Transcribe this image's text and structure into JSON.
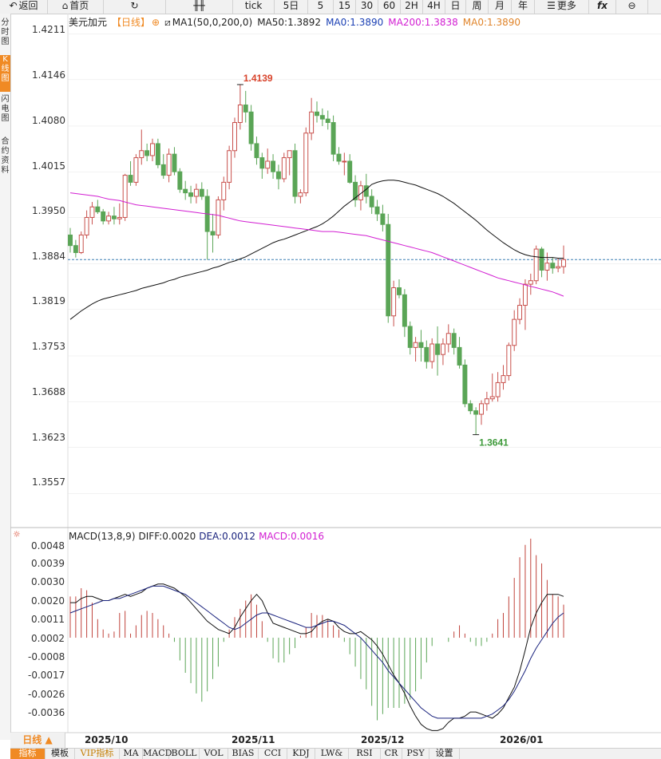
{
  "toolbar": {
    "back": "返回",
    "home": "首页",
    "refresh_icon": "refresh-icon",
    "tick": "tick",
    "periods": [
      "5日",
      "5",
      "15",
      "30",
      "60",
      "2H",
      "4H",
      "日",
      "周",
      "月",
      "年"
    ],
    "more": "更多",
    "fx": "fx"
  },
  "sidebar": {
    "items": [
      {
        "label": "分时图",
        "active": false
      },
      {
        "label": "K线图",
        "active": true
      },
      {
        "label": "闪电图",
        "active": false
      },
      {
        "label": "合约资料",
        "active": false
      }
    ]
  },
  "chart_info": {
    "symbol": "美元加元",
    "period": "【日线】",
    "ma_label": "MA1(50,0,200,0)",
    "ma50": "MA50:1.3892",
    "ma0": "MA0:1.3890",
    "ma200": "MA200:1.3838",
    "ma0b": "MA0:1.3890"
  },
  "macd_info": {
    "label": "MACD(13,8,9)",
    "diff": "DIFF:0.0020",
    "dea": "DEA:0.0012",
    "macd": "MACD:0.0016"
  },
  "colors": {
    "up": "#c8504c",
    "down": "#5aa556",
    "ma50": "#111111",
    "ma200": "#d21ed2",
    "dea": "#1a237e",
    "grid": "#e6e6e6",
    "lastline": "#3a7fb4"
  },
  "price_axis": [
    "1.4211",
    "1.4146",
    "1.4080",
    "1.4015",
    "1.3950",
    "1.3884",
    "1.3819",
    "1.3753",
    "1.3688",
    "1.3623",
    "1.3557"
  ],
  "macd_axis": [
    "0.0048",
    "0.0039",
    "0.0030",
    "0.0020",
    "0.0011",
    "0.0002",
    "-0.0008",
    "-0.0017",
    "-0.0026",
    "-0.0036"
  ],
  "annotations": {
    "high": "1.4139",
    "low": "1.3641"
  },
  "dates": [
    "2025/10",
    "2025/11",
    "2025/12",
    "2026/01"
  ],
  "bottom": {
    "period_select": "日线 ▲",
    "tabs": [
      "指标",
      "模板",
      "VIP指标",
      "MA",
      "MACD",
      "BOLL",
      "VOL",
      "BIAS",
      "CCI",
      "KDJ",
      "LW&",
      "RSI",
      "CR",
      "PSY",
      "设置"
    ]
  },
  "chart_data": {
    "type": "candlestick",
    "candles": [
      [
        1.3925,
        1.3935,
        1.39,
        1.391
      ],
      [
        1.391,
        1.3918,
        1.3893,
        1.39
      ],
      [
        1.39,
        1.393,
        1.3898,
        1.3925
      ],
      [
        1.3925,
        1.396,
        1.392,
        1.395
      ],
      [
        1.395,
        1.3972,
        1.394,
        1.3965
      ],
      [
        1.3965,
        1.3975,
        1.3955,
        1.3958
      ],
      [
        1.3958,
        1.3962,
        1.394,
        1.3945
      ],
      [
        1.3945,
        1.3958,
        1.394,
        1.3952
      ],
      [
        1.3952,
        1.3965,
        1.394,
        1.3948
      ],
      [
        1.3948,
        1.397,
        1.394,
        1.395
      ],
      [
        1.395,
        1.4012,
        1.3945,
        1.401
      ],
      [
        1.401,
        1.403,
        1.3995,
        1.4
      ],
      [
        1.4,
        1.404,
        1.3995,
        1.4035
      ],
      [
        1.4035,
        1.4075,
        1.4025,
        1.4045
      ],
      [
        1.4045,
        1.4055,
        1.403,
        1.4038
      ],
      [
        1.4038,
        1.4062,
        1.403,
        1.4055
      ],
      [
        1.4055,
        1.4062,
        1.402,
        1.4025
      ],
      [
        1.4025,
        1.404,
        1.4005,
        1.401
      ],
      [
        1.401,
        1.4048,
        1.4,
        1.404
      ],
      [
        1.404,
        1.405,
        1.401,
        1.4015
      ],
      [
        1.4015,
        1.402,
        1.3985,
        1.399
      ],
      [
        1.399,
        1.4002,
        1.3975,
        1.3985
      ],
      [
        1.3985,
        1.3995,
        1.397,
        1.398
      ],
      [
        1.398,
        1.3998,
        1.397,
        1.399
      ],
      [
        1.399,
        1.4,
        1.3975,
        1.398
      ],
      [
        1.398,
        1.399,
        1.389,
        1.393
      ],
      [
        1.393,
        1.3955,
        1.39,
        1.3925
      ],
      [
        1.3925,
        1.398,
        1.392,
        1.3975
      ],
      [
        1.3975,
        1.4008,
        1.396,
        1.4
      ],
      [
        1.4,
        1.4052,
        1.399,
        1.4045
      ],
      [
        1.4045,
        1.4092,
        1.4035,
        1.4085
      ],
      [
        1.4085,
        1.4139,
        1.4075,
        1.411
      ],
      [
        1.411,
        1.413,
        1.4085,
        1.41
      ],
      [
        1.41,
        1.411,
        1.4045,
        1.4055
      ],
      [
        1.4055,
        1.4065,
        1.4025,
        1.4035
      ],
      [
        1.4035,
        1.4042,
        1.4005,
        1.402
      ],
      [
        1.402,
        1.4048,
        1.4012,
        1.403
      ],
      [
        1.403,
        1.404,
        1.4005,
        1.4015
      ],
      [
        1.4015,
        1.4025,
        1.399,
        1.4005
      ],
      [
        1.4005,
        1.4042,
        1.4,
        1.4035
      ],
      [
        1.4035,
        1.4045,
        1.401,
        1.4045
      ],
      [
        1.4045,
        1.4055,
        1.397,
        1.398
      ],
      [
        1.398,
        1.399,
        1.397,
        1.3985
      ],
      [
        1.3985,
        1.4078,
        1.398,
        1.407
      ],
      [
        1.407,
        1.412,
        1.406,
        1.41
      ],
      [
        1.41,
        1.4115,
        1.4085,
        1.4095
      ],
      [
        1.4095,
        1.4105,
        1.408,
        1.409
      ],
      [
        1.409,
        1.4102,
        1.4075,
        1.4085
      ],
      [
        1.4085,
        1.4095,
        1.403,
        1.404
      ],
      [
        1.404,
        1.405,
        1.4025,
        1.403
      ],
      [
        1.403,
        1.4042,
        1.401,
        1.403
      ],
      [
        1.403,
        1.404,
        1.3998,
        1.4
      ],
      [
        1.4,
        1.401,
        1.3965,
        1.3975
      ],
      [
        1.3975,
        1.4002,
        1.396,
        1.3995
      ],
      [
        1.3995,
        1.4012,
        1.397,
        1.398
      ],
      [
        1.398,
        1.399,
        1.3955,
        1.3965
      ],
      [
        1.3965,
        1.3975,
        1.3945,
        1.3955
      ],
      [
        1.3955,
        1.3968,
        1.393,
        1.394
      ],
      [
        1.394,
        1.3955,
        1.38,
        1.381
      ],
      [
        1.381,
        1.386,
        1.3795,
        1.385
      ],
      [
        1.385,
        1.3862,
        1.3835,
        1.384
      ],
      [
        1.384,
        1.3848,
        1.378,
        1.3795
      ],
      [
        1.3795,
        1.3802,
        1.3755,
        1.3765
      ],
      [
        1.3765,
        1.378,
        1.3745,
        1.3772
      ],
      [
        1.3772,
        1.379,
        1.3745,
        1.3765
      ],
      [
        1.3765,
        1.3775,
        1.3735,
        1.3745
      ],
      [
        1.3745,
        1.3778,
        1.3735,
        1.377
      ],
      [
        1.377,
        1.3795,
        1.3725,
        1.3755
      ],
      [
        1.3755,
        1.3778,
        1.374,
        1.377
      ],
      [
        1.377,
        1.3798,
        1.3758,
        1.3785
      ],
      [
        1.3785,
        1.3792,
        1.3755,
        1.3765
      ],
      [
        1.3765,
        1.378,
        1.3735,
        1.374
      ],
      [
        1.374,
        1.3748,
        1.368,
        1.3685
      ],
      [
        1.3685,
        1.369,
        1.367,
        1.3675
      ],
      [
        1.3675,
        1.368,
        1.3641,
        1.367
      ],
      [
        1.367,
        1.369,
        1.3655,
        1.3685
      ],
      [
        1.3685,
        1.3702,
        1.3675,
        1.3692
      ],
      [
        1.3692,
        1.3728,
        1.3688,
        1.3695
      ],
      [
        1.3695,
        1.373,
        1.3688,
        1.3715
      ],
      [
        1.3715,
        1.374,
        1.3705,
        1.3725
      ],
      [
        1.3725,
        1.3772,
        1.3718,
        1.3768
      ],
      [
        1.3768,
        1.3818,
        1.376,
        1.3805
      ],
      [
        1.3805,
        1.3835,
        1.3798,
        1.3825
      ],
      [
        1.3825,
        1.3862,
        1.379,
        1.3855
      ],
      [
        1.3855,
        1.387,
        1.384,
        1.386
      ],
      [
        1.386,
        1.391,
        1.3855,
        1.3905
      ],
      [
        1.3905,
        1.3908,
        1.3865,
        1.3875
      ],
      [
        1.3875,
        1.39,
        1.386,
        1.3885
      ],
      [
        1.3885,
        1.3893,
        1.387,
        1.3878
      ],
      [
        1.3878,
        1.3892,
        1.3872,
        1.388
      ],
      [
        1.388,
        1.391,
        1.387,
        1.389
      ]
    ],
    "ma50": [
      1.3805,
      1.3811,
      1.3817,
      1.3822,
      1.3827,
      1.3831,
      1.3834,
      1.3836,
      1.3838,
      1.384,
      1.3842,
      1.3844,
      1.3846,
      1.3849,
      1.3851,
      1.3853,
      1.3855,
      1.3857,
      1.386,
      1.3862,
      1.3865,
      1.3867,
      1.3869,
      1.3871,
      1.3873,
      1.3875,
      1.3878,
      1.388,
      1.3883,
      1.3886,
      1.3888,
      1.3891,
      1.3894,
      1.3898,
      1.3902,
      1.3906,
      1.391,
      1.3914,
      1.3917,
      1.3919,
      1.3922,
      1.3925,
      1.3928,
      1.3931,
      1.3934,
      1.3937,
      1.3941,
      1.3946,
      1.3952,
      1.3959,
      1.3966,
      1.3972,
      1.3978,
      1.3984,
      1.399,
      1.3997,
      1.4,
      1.4002,
      1.4003,
      1.4003,
      1.4002,
      1.4,
      1.3998,
      1.3996,
      1.3993,
      1.399,
      1.3987,
      1.3984,
      1.398,
      1.3975,
      1.397,
      1.3964,
      1.3958,
      1.3952,
      1.3946,
      1.3939,
      1.3932,
      1.3926,
      1.392,
      1.3914,
      1.3909,
      1.3904,
      1.39,
      1.3897,
      1.3895,
      1.3894,
      1.3893,
      1.3893,
      1.3893,
      1.3892,
      1.3892
    ],
    "ma200": [
      1.3985,
      1.3984,
      1.3983,
      1.3982,
      1.3981,
      1.398,
      1.3978,
      1.3976,
      1.3975,
      1.3974,
      1.3972,
      1.397,
      1.3968,
      1.3967,
      1.3966,
      1.3965,
      1.3964,
      1.3963,
      1.3962,
      1.3961,
      1.396,
      1.3959,
      1.3958,
      1.3957,
      1.3956,
      1.3955,
      1.3954,
      1.3953,
      1.3951,
      1.3949,
      1.3947,
      1.3945,
      1.3944,
      1.3943,
      1.3942,
      1.3941,
      1.394,
      1.3939,
      1.3938,
      1.3937,
      1.3936,
      1.3935,
      1.3934,
      1.3933,
      1.3932,
      1.3931,
      1.393,
      1.393,
      1.393,
      1.3929,
      1.3928,
      1.3927,
      1.3926,
      1.3925,
      1.3924,
      1.3922,
      1.392,
      1.3918,
      1.3916,
      1.3914,
      1.3912,
      1.391,
      1.3908,
      1.3906,
      1.3904,
      1.3902,
      1.39,
      1.3897,
      1.3894,
      1.3891,
      1.3888,
      1.3885,
      1.3882,
      1.3879,
      1.3876,
      1.3873,
      1.387,
      1.3867,
      1.3864,
      1.3862,
      1.386,
      1.3858,
      1.3856,
      1.3854,
      1.3852,
      1.385,
      1.3848,
      1.3846,
      1.3844,
      1.3841,
      1.3838
    ],
    "macd_diff": [
      0.0017,
      0.0017,
      0.0019,
      0.002,
      0.002,
      0.0019,
      0.0018,
      0.0018,
      0.0019,
      0.002,
      0.0021,
      0.002,
      0.0021,
      0.0022,
      0.0024,
      0.0025,
      0.0026,
      0.0026,
      0.0025,
      0.0024,
      0.0022,
      0.002,
      0.0017,
      0.0014,
      0.0011,
      0.0008,
      0.0006,
      0.0004,
      0.0003,
      0.0002,
      0.0005,
      0.001,
      0.0014,
      0.0018,
      0.0021,
      0.0018,
      0.0012,
      0.0007,
      0.0006,
      0.0005,
      0.0004,
      0.0003,
      0.0002,
      0.0002,
      0.0003,
      0.0006,
      0.0008,
      0.0009,
      0.0008,
      0.0005,
      0.0003,
      0.0002,
      0.0002,
      0.0003,
      0.0001,
      -0.0001,
      -0.0004,
      -0.0008,
      -0.0013,
      -0.0018,
      -0.0022,
      -0.0027,
      -0.0033,
      -0.0038,
      -0.0042,
      -0.0044,
      -0.0045,
      -0.0045,
      -0.0044,
      -0.0041,
      -0.0039,
      -0.0039,
      -0.0038,
      -0.0036,
      -0.0036,
      -0.0037,
      -0.0038,
      -0.0039,
      -0.0037,
      -0.0034,
      -0.0029,
      -0.0024,
      -0.0016,
      -0.0006,
      0.0005,
      0.0012,
      0.0017,
      0.0021,
      0.0021,
      0.0021,
      0.002
    ],
    "macd_dea": [
      0.0012,
      0.0013,
      0.0014,
      0.0015,
      0.0016,
      0.0017,
      0.0018,
      0.0018,
      0.0019,
      0.0019,
      0.002,
      0.0021,
      0.0022,
      0.0023,
      0.0024,
      0.0025,
      0.0025,
      0.0025,
      0.0024,
      0.0023,
      0.0022,
      0.0021,
      0.0019,
      0.0017,
      0.0015,
      0.0013,
      0.0011,
      0.0009,
      0.0007,
      0.0005,
      0.0004,
      0.0005,
      0.0007,
      0.0009,
      0.0011,
      0.0012,
      0.0012,
      0.0011,
      0.001,
      0.0009,
      0.0008,
      0.0007,
      0.0006,
      0.0005,
      0.0005,
      0.0006,
      0.0007,
      0.0008,
      0.0008,
      0.0007,
      0.0006,
      0.0004,
      0.0002,
      0.0,
      -0.0003,
      -0.0006,
      -0.0009,
      -0.0012,
      -0.0016,
      -0.0019,
      -0.0022,
      -0.0025,
      -0.0028,
      -0.0031,
      -0.0034,
      -0.0036,
      -0.0038,
      -0.0039,
      -0.0039,
      -0.0039,
      -0.0039,
      -0.0039,
      -0.0039,
      -0.0039,
      -0.0039,
      -0.0039,
      -0.0038,
      -0.0037,
      -0.0035,
      -0.0033,
      -0.003,
      -0.0026,
      -0.0021,
      -0.0016,
      -0.001,
      -0.0005,
      -0.0001,
      0.0003,
      0.0007,
      0.001,
      0.0012
    ],
    "macd_hist": [
      0.002,
      0.002,
      0.0024,
      0.0023,
      0.0017,
      0.0009,
      0.0004,
      0.0002,
      0.0003,
      0.0012,
      0.0013,
      0.0002,
      0.0006,
      0.0011,
      0.0013,
      0.0012,
      0.0009,
      0.0006,
      0.0002,
      -0.0002,
      -0.0011,
      -0.0017,
      -0.0022,
      -0.0027,
      -0.0031,
      -0.0026,
      -0.002,
      -0.0014,
      -0.0002,
      0.0004,
      0.001,
      0.0014,
      0.0018,
      0.0021,
      0.0016,
      0.0008,
      -0.0002,
      -0.001,
      -0.0012,
      -0.0012,
      -0.0008,
      -0.0005,
      0.0001,
      0.0005,
      0.0012,
      0.0011,
      0.0011,
      0.0009,
      0.0006,
      0.0004,
      -0.0002,
      -0.0008,
      -0.0014,
      -0.002,
      -0.0025,
      -0.0033,
      -0.004,
      -0.0037,
      -0.0034,
      -0.0034,
      -0.0034,
      -0.0032,
      -0.003,
      -0.0026,
      -0.002,
      -0.0012,
      -0.0004,
      0.0,
      0.0,
      -0.0002,
      0.0003,
      0.0006,
      0.0002,
      -0.0002,
      -0.0004,
      -0.0004,
      -0.0002,
      0.0002,
      0.0009,
      0.0012,
      0.002,
      0.0029,
      0.0039,
      0.0045,
      0.0048,
      0.004,
      0.0036,
      0.0028,
      0.0021,
      0.002,
      0.0016
    ],
    "ylim": [
      1.351,
      1.424
    ],
    "macd_ylim": [
      -0.0046,
      0.0053
    ],
    "price_ticks": [
      1.4211,
      1.4146,
      1.408,
      1.4015,
      1.395,
      1.3884,
      1.3819,
      1.3753,
      1.3688,
      1.3623,
      1.3557
    ],
    "macd_ticks": [
      0.0048,
      0.0039,
      0.003,
      0.002,
      0.0011,
      0.0002,
      -0.0008,
      -0.0017,
      -0.0026,
      -0.0036
    ],
    "last_price": 1.389,
    "annotated_high": 1.4139,
    "annotated_low": 1.3641,
    "x_labels": [
      "2025/10",
      "2025/11",
      "2025/12",
      "2026/01"
    ],
    "x_label_index": [
      2,
      29,
      52,
      76
    ]
  }
}
